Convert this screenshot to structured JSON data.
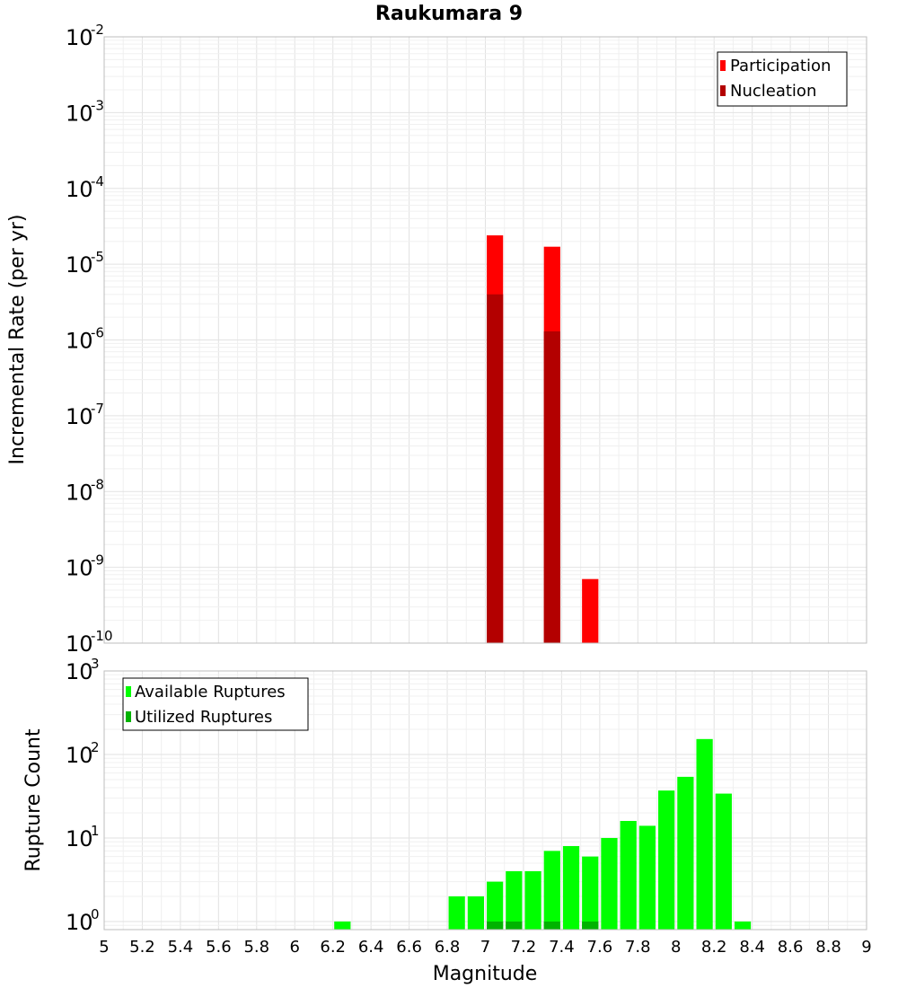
{
  "chart_data": [
    {
      "type": "bar",
      "title": "Raukumara 9",
      "xlabel": "",
      "ylabel": "Incremental Rate (per yr)",
      "yscale": "log",
      "ylim": [
        1e-10,
        0.01
      ],
      "xlim": [
        5,
        9
      ],
      "bin_width": 0.1,
      "legend": {
        "position": "top-right",
        "entries": [
          "Participation",
          "Nucleation"
        ]
      },
      "series": [
        {
          "name": "Participation",
          "color": "#ff0000",
          "points": [
            {
              "x": 7.05,
              "y": 2.4e-05
            },
            {
              "x": 7.35,
              "y": 1.7e-05
            },
            {
              "x": 7.55,
              "y": 7e-10
            }
          ]
        },
        {
          "name": "Nucleation",
          "color": "#b30000",
          "points": [
            {
              "x": 7.05,
              "y": 4e-06
            },
            {
              "x": 7.35,
              "y": 1.3e-06
            }
          ]
        }
      ],
      "y_ticks": [
        {
          "base": "10",
          "exp": "-10",
          "value": 1e-10
        },
        {
          "base": "10",
          "exp": "-9",
          "value": 1e-09
        },
        {
          "base": "10",
          "exp": "-8",
          "value": 1e-08
        },
        {
          "base": "10",
          "exp": "-7",
          "value": 1e-07
        },
        {
          "base": "10",
          "exp": "-6",
          "value": 1e-06
        },
        {
          "base": "10",
          "exp": "-5",
          "value": 1e-05
        },
        {
          "base": "10",
          "exp": "-4",
          "value": 0.0001
        },
        {
          "base": "10",
          "exp": "-3",
          "value": 0.001
        },
        {
          "base": "10",
          "exp": "-2",
          "value": 0.01
        }
      ]
    },
    {
      "type": "bar",
      "title": "",
      "xlabel": "Magnitude",
      "ylabel": "Rupture Count",
      "yscale": "log",
      "ylim": [
        0.8,
        1000
      ],
      "xlim": [
        5,
        9
      ],
      "bin_width": 0.1,
      "legend": {
        "position": "top-left",
        "entries": [
          "Available Ruptures",
          "Utilized Ruptures"
        ]
      },
      "series": [
        {
          "name": "Available Ruptures",
          "color": "#00ff00",
          "points": [
            {
              "x": 6.25,
              "y": 1
            },
            {
              "x": 6.85,
              "y": 2
            },
            {
              "x": 6.95,
              "y": 2
            },
            {
              "x": 7.05,
              "y": 3
            },
            {
              "x": 7.15,
              "y": 4
            },
            {
              "x": 7.25,
              "y": 4
            },
            {
              "x": 7.35,
              "y": 7
            },
            {
              "x": 7.45,
              "y": 8
            },
            {
              "x": 7.55,
              "y": 6
            },
            {
              "x": 7.65,
              "y": 10
            },
            {
              "x": 7.75,
              "y": 16
            },
            {
              "x": 7.85,
              "y": 14
            },
            {
              "x": 7.95,
              "y": 37
            },
            {
              "x": 8.05,
              "y": 54
            },
            {
              "x": 8.15,
              "y": 153
            },
            {
              "x": 8.25,
              "y": 34
            },
            {
              "x": 8.35,
              "y": 1
            }
          ]
        },
        {
          "name": "Utilized Ruptures",
          "color": "#00b300",
          "points": [
            {
              "x": 7.05,
              "y": 1
            },
            {
              "x": 7.15,
              "y": 1
            },
            {
              "x": 7.35,
              "y": 1
            },
            {
              "x": 7.55,
              "y": 1
            }
          ]
        }
      ],
      "y_ticks": [
        {
          "base": "10",
          "exp": "0",
          "value": 1
        },
        {
          "base": "10",
          "exp": "1",
          "value": 10
        },
        {
          "base": "10",
          "exp": "2",
          "value": 100
        },
        {
          "base": "10",
          "exp": "3",
          "value": 1000
        }
      ],
      "x_tick_labels": [
        "5",
        "5.2",
        "5.4",
        "5.6",
        "5.8",
        "6",
        "6.2",
        "6.4",
        "6.6",
        "6.8",
        "7",
        "7.2",
        "7.4",
        "7.6",
        "7.8",
        "8",
        "8.2",
        "8.4",
        "8.6",
        "8.8",
        "9"
      ]
    }
  ]
}
